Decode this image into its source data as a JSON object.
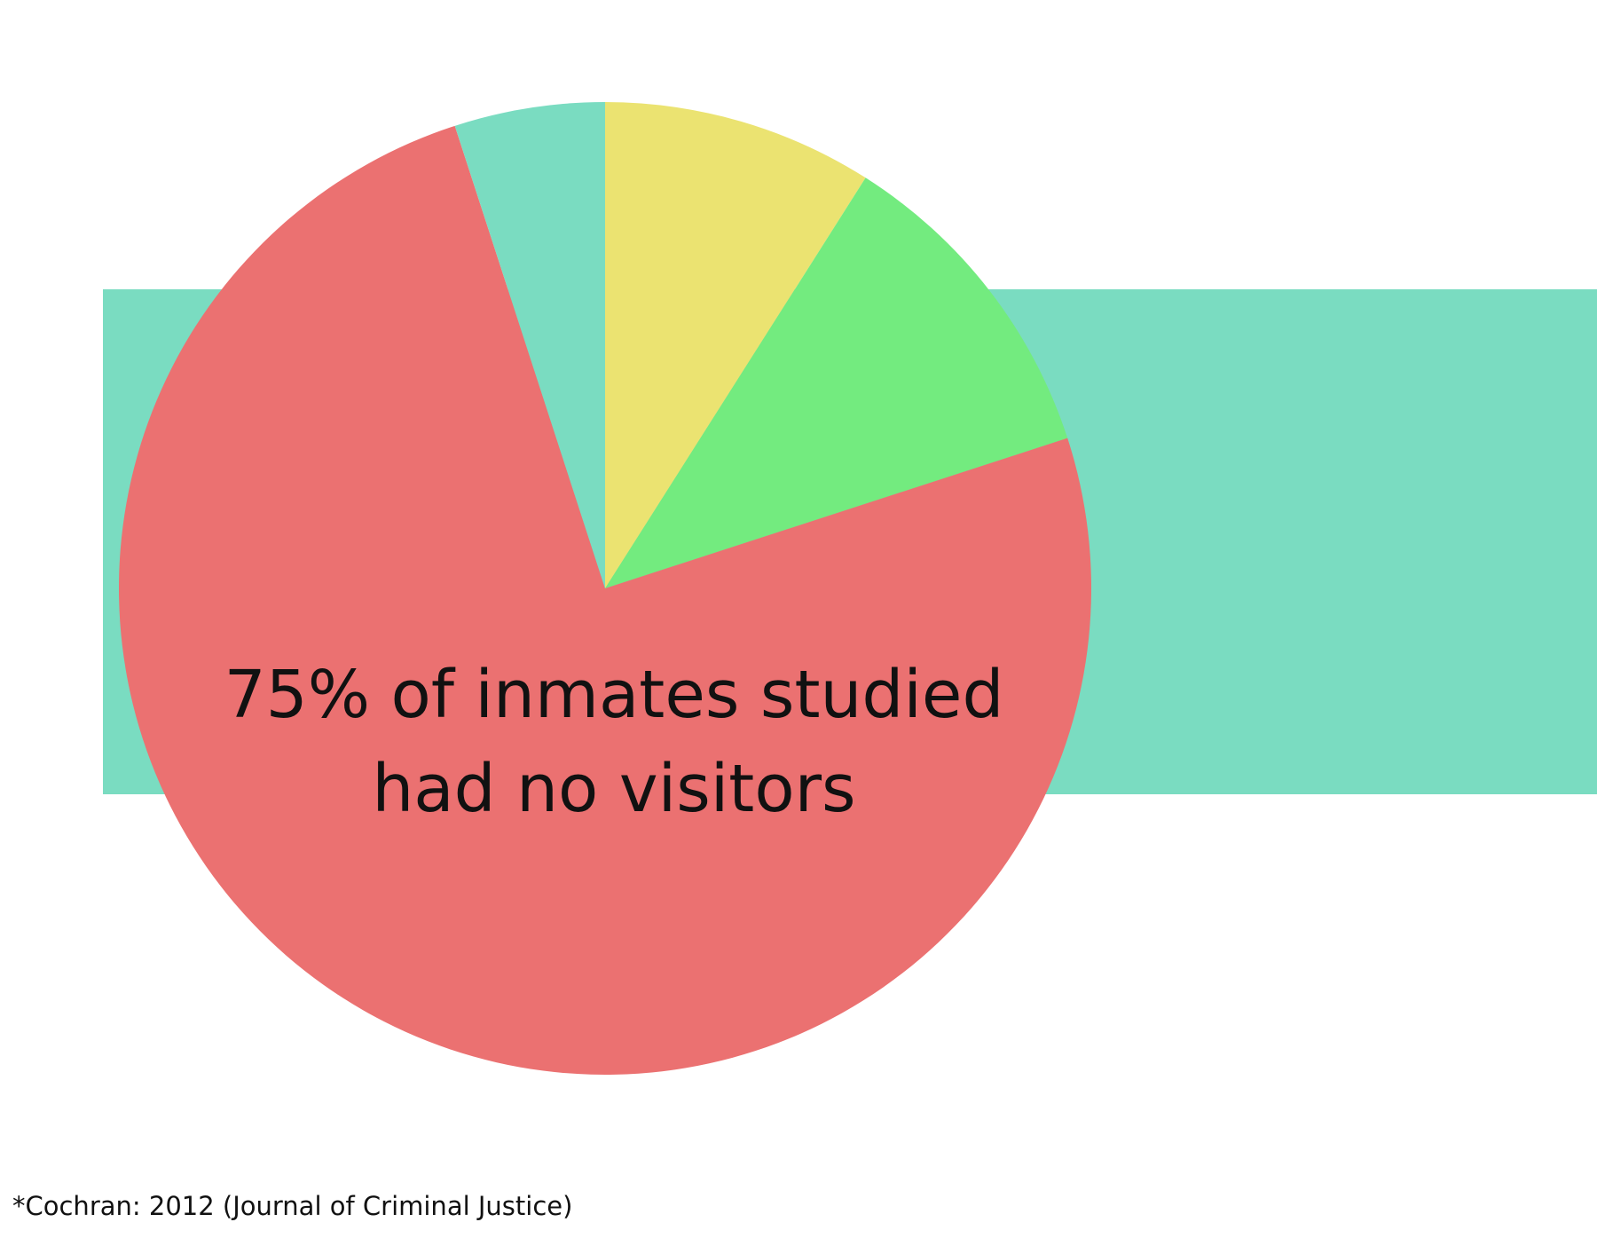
{
  "colors": {
    "band": "#7adcc1",
    "background": "#ffffff"
  },
  "chart_data": {
    "type": "pie",
    "slices": [
      {
        "value": 9.0,
        "color": "#ebe371"
      },
      {
        "value": 11.0,
        "color": "#73eb7f"
      },
      {
        "value": 75.0,
        "color": "#eb7171"
      },
      {
        "value": 5.0,
        "color": "#7adcc1"
      }
    ],
    "start_angle_deg": 0,
    "direction": "clockwise",
    "annotation": {
      "line1": "75% of inmates studied",
      "line2": "had no visitors"
    }
  },
  "footer": {
    "source": "*Cochran: 2012 (Journal of Criminal Justice)"
  }
}
